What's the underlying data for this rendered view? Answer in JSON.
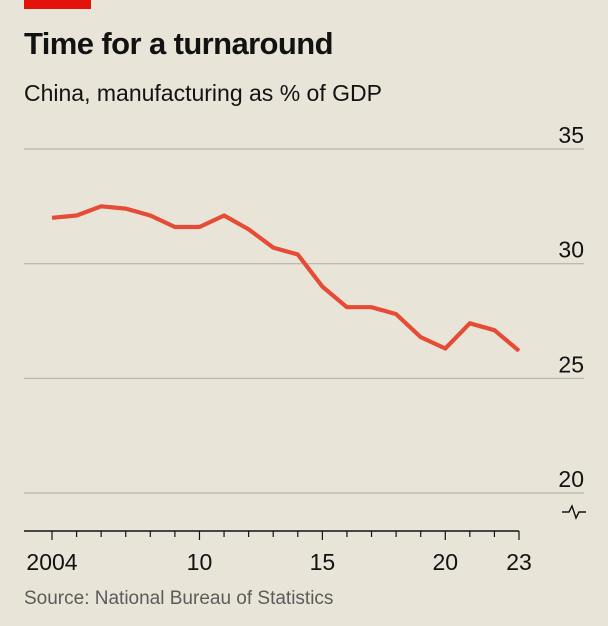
{
  "header": {
    "title": "Time for a turnaround",
    "subtitle": "China, manufacturing as % of GDP"
  },
  "footer": {
    "source": "Source: National Bureau of Statistics"
  },
  "colors": {
    "line": "#e64b35",
    "accent": "#e3120b",
    "grid": "#b8b4ab",
    "axis": "#121212"
  },
  "chart_data": {
    "type": "line",
    "title": "Time for a turnaround",
    "subtitle": "China, manufacturing as % of GDP",
    "xlabel": "",
    "ylabel": "",
    "xlim": [
      2004,
      2023
    ],
    "ylim": [
      20,
      35
    ],
    "y_ticks": [
      35,
      30,
      25,
      20
    ],
    "x_tick_labels": [
      {
        "value": 2004,
        "label": "2004"
      },
      {
        "value": 2010,
        "label": "10"
      },
      {
        "value": 2015,
        "label": "15"
      },
      {
        "value": 2020,
        "label": "20"
      },
      {
        "value": 2023,
        "label": "23"
      }
    ],
    "grid": true,
    "axis_break": true,
    "series": [
      {
        "name": "Manufacturing as % of GDP",
        "x": [
          2004,
          2005,
          2006,
          2007,
          2008,
          2009,
          2010,
          2011,
          2012,
          2013,
          2014,
          2015,
          2016,
          2017,
          2018,
          2019,
          2020,
          2021,
          2022,
          2023
        ],
        "values": [
          32.0,
          32.1,
          32.5,
          32.4,
          32.1,
          31.6,
          31.6,
          32.1,
          31.5,
          30.7,
          30.4,
          29.0,
          28.1,
          28.1,
          27.8,
          26.8,
          26.3,
          27.4,
          27.1,
          26.2
        ]
      }
    ]
  }
}
